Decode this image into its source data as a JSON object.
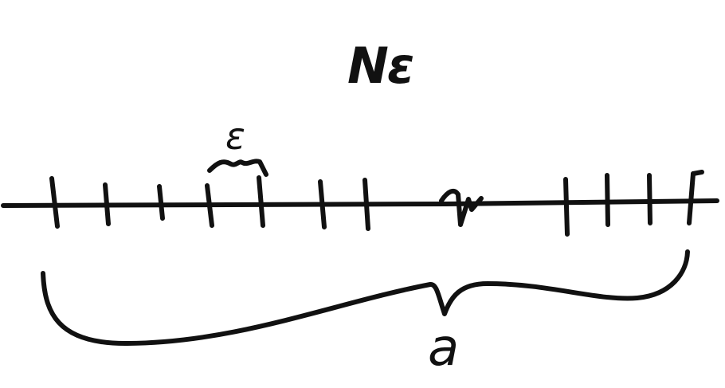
{
  "diagram": {
    "title": "Nε",
    "spacing_label": "ε",
    "brace_label": "a",
    "line_ticks": 11
  }
}
